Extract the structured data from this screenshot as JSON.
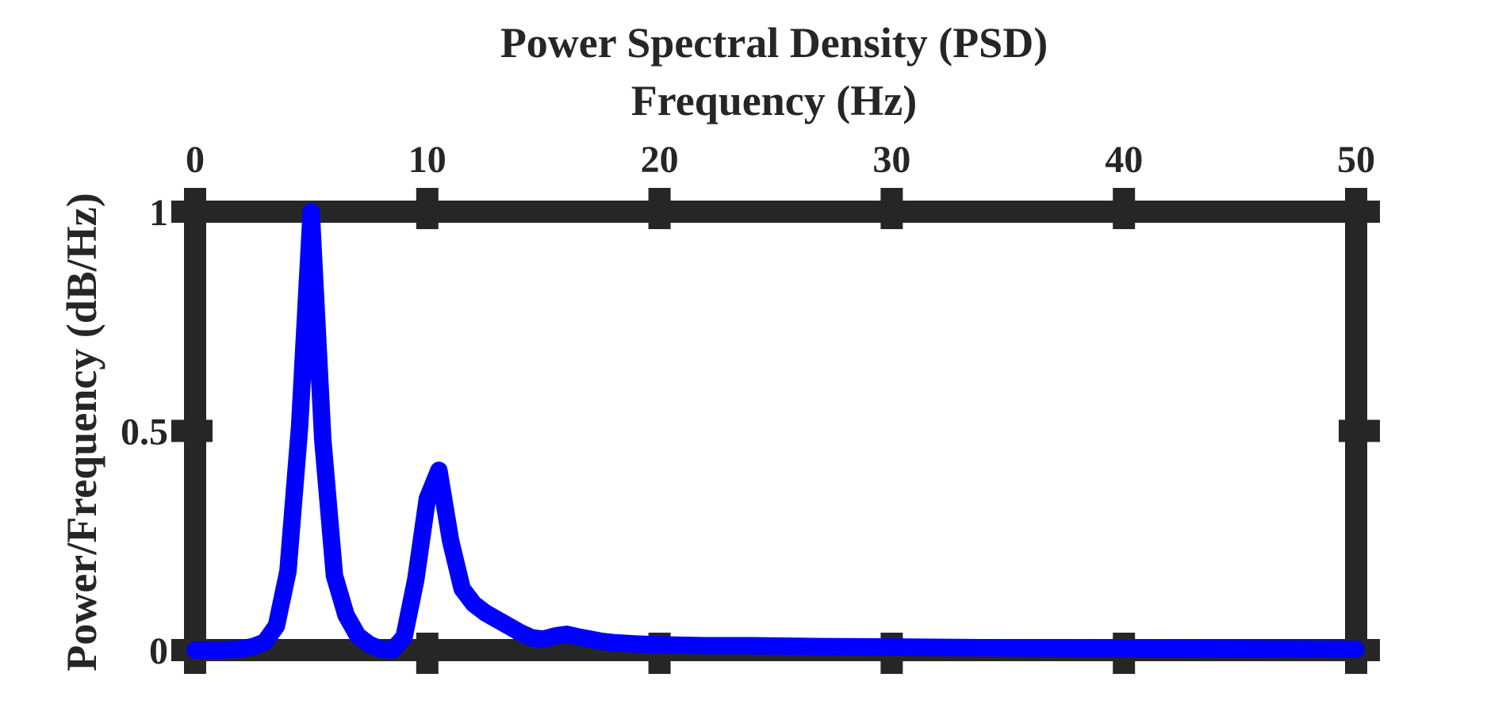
{
  "chart_data": {
    "type": "line",
    "title": "Power Spectral Density (PSD)",
    "xlabel": "Frequency (Hz)",
    "ylabel": "Power/Frequency (dB/Hz)",
    "x_axis_location": "top",
    "xlim": [
      0,
      50
    ],
    "ylim": [
      0,
      1
    ],
    "x_ticks": [
      0,
      10,
      20,
      30,
      40,
      50
    ],
    "x_tick_labels": [
      "0",
      "10",
      "20",
      "30",
      "40",
      "50"
    ],
    "y_ticks": [
      0,
      0.5,
      1
    ],
    "y_tick_labels": [
      "0",
      "0.5",
      "1"
    ],
    "grid": false,
    "series": [
      {
        "color": "#0000ff",
        "x": [
          0,
          1,
          1.5,
          2,
          2.5,
          3,
          3.5,
          4,
          4.5,
          5,
          5.5,
          6,
          6.5,
          7,
          7.5,
          8,
          8.5,
          9,
          9.5,
          10,
          10.5,
          11,
          11.5,
          12,
          12.5,
          13,
          13.5,
          14,
          14.5,
          15,
          15.5,
          16,
          16.5,
          17,
          17.5,
          18,
          19,
          20,
          22,
          24,
          27,
          30,
          35,
          40,
          45,
          50
        ],
        "y": [
          0,
          0,
          0.001,
          0.003,
          0.008,
          0.018,
          0.055,
          0.18,
          0.51,
          1.0,
          0.48,
          0.17,
          0.08,
          0.033,
          0.013,
          0.002,
          0.0,
          0.03,
          0.16,
          0.345,
          0.41,
          0.25,
          0.14,
          0.105,
          0.085,
          0.07,
          0.055,
          0.04,
          0.028,
          0.025,
          0.032,
          0.036,
          0.03,
          0.025,
          0.02,
          0.017,
          0.014,
          0.012,
          0.01,
          0.01,
          0.008,
          0.007,
          0.005,
          0.004,
          0.003,
          0.002
        ]
      }
    ]
  },
  "colors": {
    "axes": "#262626",
    "line": "#0000ff",
    "background": "#ffffff"
  }
}
